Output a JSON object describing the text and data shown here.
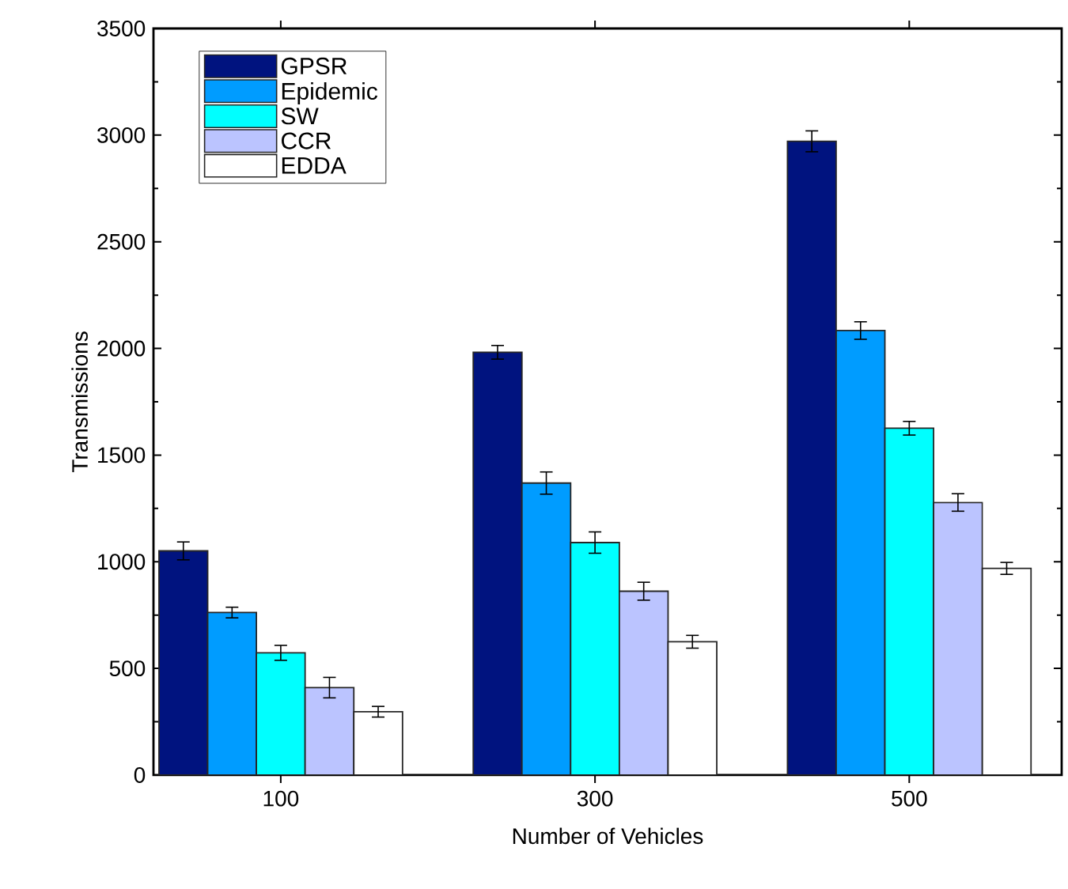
{
  "chart_data": {
    "type": "bar",
    "xlabel": "Number of Vehicles",
    "ylabel": "Transmissions",
    "categories": [
      "100",
      "300",
      "500"
    ],
    "series": [
      {
        "name": "GPSR",
        "color": "#00137f",
        "values": [
          1051,
          1982,
          2971
        ],
        "errors": [
          42,
          32,
          49
        ]
      },
      {
        "name": "Epidemic",
        "color": "#009cff",
        "values": [
          762,
          1369,
          2084
        ],
        "errors": [
          25,
          52,
          41
        ]
      },
      {
        "name": "SW",
        "color": "#00ffff",
        "values": [
          573,
          1090,
          1626
        ],
        "errors": [
          35,
          50,
          32
        ]
      },
      {
        "name": "CCR",
        "color": "#bbc4ff",
        "values": [
          410,
          862,
          1278
        ],
        "errors": [
          48,
          42,
          41
        ]
      },
      {
        "name": "EDDA",
        "color": "#ffffff",
        "values": [
          297,
          625,
          969
        ],
        "errors": [
          25,
          30,
          28
        ]
      }
    ],
    "ylim": [
      0,
      3500
    ],
    "yticks": [
      0,
      500,
      1000,
      1500,
      2000,
      2500,
      3000,
      3500
    ],
    "grid": false,
    "legend": "top left"
  }
}
